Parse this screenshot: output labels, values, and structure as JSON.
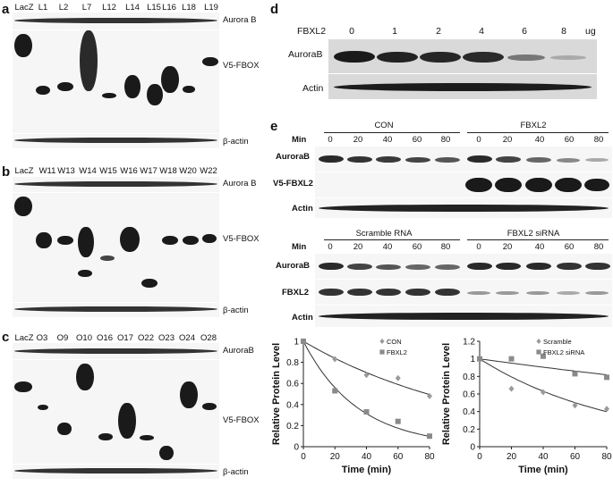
{
  "panel_a": {
    "label": "a",
    "lanes": [
      "LacZ",
      "L1",
      "L2",
      "L7",
      "L12",
      "L14",
      "L15",
      "L16",
      "L18",
      "L19"
    ],
    "rows": [
      "Aurora B",
      "V5-FBOX",
      "β-actin"
    ]
  },
  "panel_b": {
    "label": "b",
    "lanes": [
      "LacZ",
      "W11",
      "W13",
      "W14",
      "W15",
      "W16",
      "W17",
      "W18",
      "W20",
      "W22"
    ],
    "rows": [
      "Aurora B",
      "V5-FBOX",
      "β-actin"
    ]
  },
  "panel_c": {
    "label": "c",
    "lanes": [
      "LacZ",
      "O3",
      "O9",
      "O10",
      "O16",
      "O17",
      "O22",
      "O23",
      "O24",
      "O28"
    ],
    "rows": [
      "AuroraB",
      "V5-FBOX",
      "β-actin"
    ]
  },
  "panel_d": {
    "label": "d",
    "dose_label": "FBXL2",
    "doses": [
      "0",
      "1",
      "2",
      "4",
      "6",
      "8"
    ],
    "unit": "ug",
    "rows": [
      "AuroraB",
      "Actin"
    ]
  },
  "panel_e": {
    "label": "e",
    "group1": [
      "CON",
      "FBXL2"
    ],
    "group2": [
      "Scramble RNA",
      "FBXL2 siRNA"
    ],
    "min_label": "Min",
    "times": [
      "0",
      "20",
      "40",
      "60",
      "80"
    ],
    "rows_top": [
      "AuroraB",
      "V5-FBXL2",
      "Actin"
    ],
    "rows_bottom": [
      "AuroraB",
      "FBXL2",
      "Actin"
    ]
  },
  "chart_data": [
    {
      "type": "scatter",
      "xlabel": "Time (min)",
      "ylabel": "Relative Protein Level",
      "xlim": [
        0,
        80
      ],
      "ylim": [
        0,
        1
      ],
      "xticks": [
        "0",
        "20",
        "40",
        "60",
        "80"
      ],
      "yticks": [
        "0",
        "0.2",
        "0.4",
        "0.6",
        "0.8",
        "1"
      ],
      "legend_position": "top-right",
      "series": [
        {
          "name": "CON",
          "color": "#9a9a9a",
          "marker": "diamond",
          "x": [
            0,
            20,
            40,
            60,
            80
          ],
          "y": [
            1.0,
            0.83,
            0.68,
            0.65,
            0.48
          ],
          "fit_k": 0.0088
        },
        {
          "name": "FBXL2",
          "color": "#8a8a8a",
          "marker": "square",
          "x": [
            0,
            20,
            40,
            60,
            80
          ],
          "y": [
            1.0,
            0.53,
            0.33,
            0.24,
            0.1
          ],
          "fit_k": 0.029
        }
      ]
    },
    {
      "type": "scatter",
      "xlabel": "Time (min)",
      "ylabel": "Relative Protein Level",
      "xlim": [
        0,
        80
      ],
      "ylim": [
        0,
        1.2
      ],
      "xticks": [
        "0",
        "20",
        "40",
        "60",
        "80"
      ],
      "yticks": [
        "0",
        "0.2",
        "0.4",
        "0.6",
        "0.8",
        "1",
        "1.2"
      ],
      "legend_position": "top-right",
      "series": [
        {
          "name": "Scramble",
          "color": "#9a9a9a",
          "marker": "diamond",
          "x": [
            0,
            20,
            40,
            60,
            80
          ],
          "y": [
            1.0,
            0.66,
            0.62,
            0.47,
            0.43
          ],
          "fit_k": 0.0115
        },
        {
          "name": "FBXL2 siRNA",
          "color": "#8a8a8a",
          "marker": "square",
          "x": [
            0,
            20,
            40,
            60,
            80
          ],
          "y": [
            1.0,
            1.0,
            1.03,
            0.83,
            0.79
          ],
          "fit_k": 0.0025
        }
      ]
    }
  ]
}
